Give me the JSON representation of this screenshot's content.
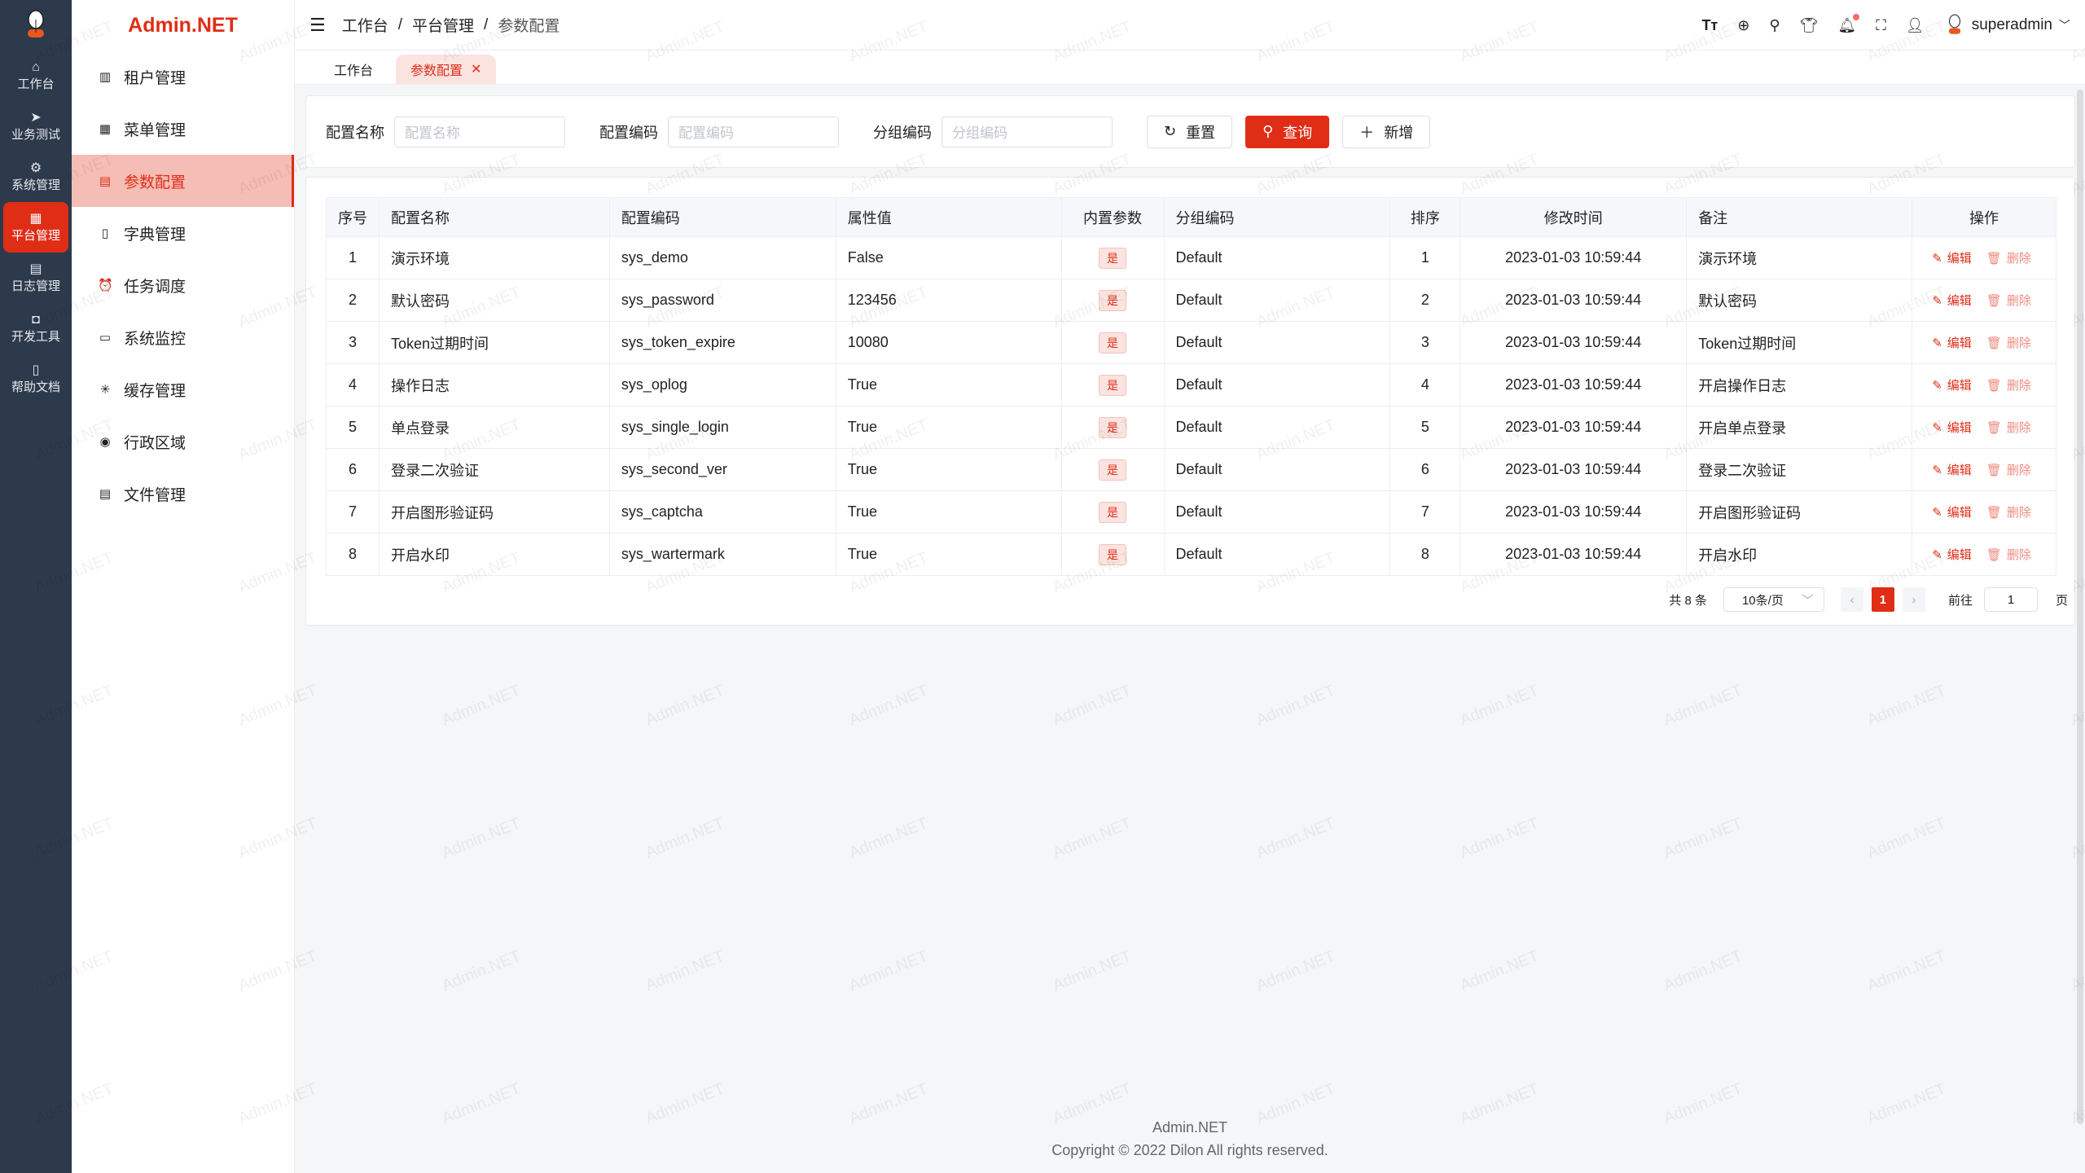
{
  "brand": "Admin.NET",
  "watermark": "Admin.NET",
  "rail": [
    {
      "icon": "home-icon",
      "glyph": "⌂",
      "label": "工作台"
    },
    {
      "icon": "send-icon",
      "glyph": "➤",
      "label": "业务测试"
    },
    {
      "icon": "gear-icon",
      "glyph": "⚙",
      "label": "系统管理"
    },
    {
      "icon": "grid-icon",
      "glyph": "▦",
      "label": "平台管理",
      "active": true
    },
    {
      "icon": "log-icon",
      "glyph": "▤",
      "label": "日志管理"
    },
    {
      "icon": "chip-icon",
      "glyph": "◘",
      "label": "开发工具"
    },
    {
      "icon": "book-icon",
      "glyph": "▯",
      "label": "帮助文档"
    }
  ],
  "submenu": [
    {
      "icon": "building-icon",
      "glyph": "▥",
      "label": "租户管理"
    },
    {
      "icon": "menu-grid-icon",
      "glyph": "▦",
      "label": "菜单管理"
    },
    {
      "icon": "config-icon",
      "glyph": "▤",
      "label": "参数配置",
      "active": true
    },
    {
      "icon": "dictionary-icon",
      "glyph": "▯",
      "label": "字典管理"
    },
    {
      "icon": "alarm-icon",
      "glyph": "⏰",
      "label": "任务调度"
    },
    {
      "icon": "monitor-icon",
      "glyph": "▭",
      "label": "系统监控"
    },
    {
      "icon": "loading-icon",
      "glyph": "✳",
      "label": "缓存管理"
    },
    {
      "icon": "location-icon",
      "glyph": "◉",
      "label": "行政区域"
    },
    {
      "icon": "file-icon",
      "glyph": "▤",
      "label": "文件管理"
    }
  ],
  "breadcrumb": [
    "工作台",
    "平台管理",
    "参数配置"
  ],
  "header": {
    "username": "superadmin",
    "accent": "#e02d16"
  },
  "tabs": [
    {
      "label": "工作台"
    },
    {
      "label": "参数配置",
      "active": true
    }
  ],
  "search": {
    "fields": [
      {
        "label": "配置名称",
        "placeholder": "配置名称"
      },
      {
        "label": "配置编码",
        "placeholder": "配置编码"
      },
      {
        "label": "分组编码",
        "placeholder": "分组编码"
      }
    ],
    "reset": "重置",
    "query": "查询",
    "add": "新增"
  },
  "table": {
    "columns": [
      "序号",
      "配置名称",
      "配置编码",
      "属性值",
      "内置参数",
      "分组编码",
      "排序",
      "修改时间",
      "备注",
      "操作"
    ],
    "rows": [
      [
        "1",
        "演示环境",
        "sys_demo",
        "False",
        "是",
        "Default",
        "1",
        "2023-01-03 10:59:44",
        "演示环境"
      ],
      [
        "2",
        "默认密码",
        "sys_password",
        "123456",
        "是",
        "Default",
        "2",
        "2023-01-03 10:59:44",
        "默认密码"
      ],
      [
        "3",
        "Token过期时间",
        "sys_token_expire",
        "10080",
        "是",
        "Default",
        "3",
        "2023-01-03 10:59:44",
        "Token过期时间"
      ],
      [
        "4",
        "操作日志",
        "sys_oplog",
        "True",
        "是",
        "Default",
        "4",
        "2023-01-03 10:59:44",
        "开启操作日志"
      ],
      [
        "5",
        "单点登录",
        "sys_single_login",
        "True",
        "是",
        "Default",
        "5",
        "2023-01-03 10:59:44",
        "开启单点登录"
      ],
      [
        "6",
        "登录二次验证",
        "sys_second_ver",
        "True",
        "是",
        "Default",
        "6",
        "2023-01-03 10:59:44",
        "登录二次验证"
      ],
      [
        "7",
        "开启图形验证码",
        "sys_captcha",
        "True",
        "是",
        "Default",
        "7",
        "2023-01-03 10:59:44",
        "开启图形验证码"
      ],
      [
        "8",
        "开启水印",
        "sys_wartermark",
        "True",
        "是",
        "Default",
        "8",
        "2023-01-03 10:59:44",
        "开启水印"
      ]
    ],
    "edit": "编辑",
    "delete": "删除"
  },
  "pager": {
    "total": "共 8 条",
    "size": "10条/页",
    "current": "1",
    "goto": "前往",
    "goto_value": "1",
    "page_unit": "页"
  },
  "footer": {
    "line1": "Admin.NET",
    "line2": "Copyright © 2022 Dilon All rights reserved."
  }
}
